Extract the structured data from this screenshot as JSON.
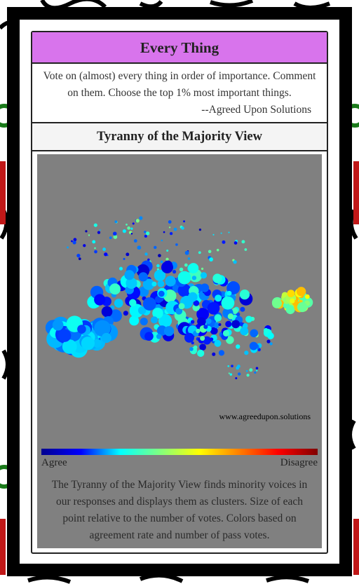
{
  "header": {
    "title": "Every Thing"
  },
  "description": {
    "text": "Vote on (almost) every thing in order of importance. Comment on them. Choose the top 1% most important things.",
    "attribution": "--Agreed Upon Solutions"
  },
  "view": {
    "title": "Tyranny of the Majority View",
    "watermark": "www.agreedupon.solutions",
    "legend": {
      "low": "Agree",
      "high": "Disagree"
    },
    "caption": "The Tyranny of the Majority View finds minority voices in our responses and displays them as clusters. Size of each point relative to the number of votes. Colors based on agreement rate and number of pass votes."
  }
}
